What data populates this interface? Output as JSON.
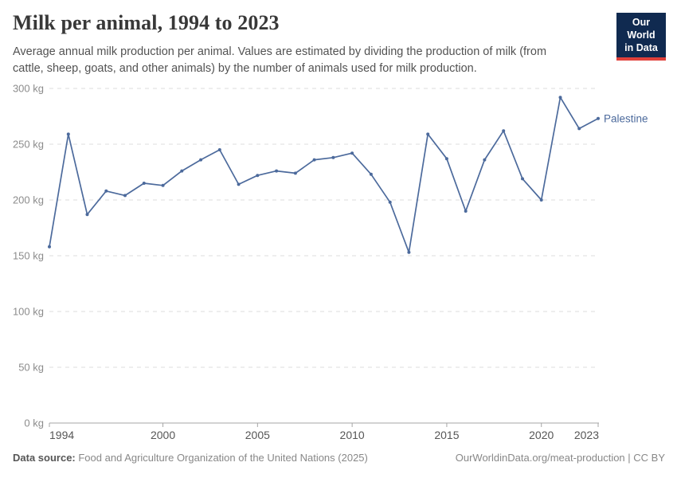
{
  "header": {
    "logo": {
      "line1": "Our World",
      "line2": "in Data",
      "bg_color": "#102a50",
      "accent_color": "#e0403a"
    }
  },
  "chart_data": {
    "type": "line",
    "title": "Milk per animal, 1994 to 2023",
    "subtitle": "Average annual milk production per animal. Values are estimated by dividing the production of milk (from cattle, sheep, goats, and other animals) by the number of animals used for milk production.",
    "x": [
      1994,
      1995,
      1996,
      1997,
      1998,
      1999,
      2000,
      2001,
      2002,
      2003,
      2004,
      2005,
      2006,
      2007,
      2008,
      2009,
      2010,
      2011,
      2012,
      2013,
      2014,
      2015,
      2016,
      2017,
      2018,
      2019,
      2020,
      2021,
      2022,
      2023
    ],
    "series": [
      {
        "name": "Palestine",
        "color": "#4C6A9C",
        "values": [
          158,
          259,
          187,
          208,
          204,
          215,
          213,
          226,
          236,
          245,
          214,
          222,
          226,
          224,
          236,
          238,
          242,
          223,
          198,
          153,
          259,
          237,
          190,
          236,
          262,
          219,
          200,
          292,
          264,
          273
        ]
      }
    ],
    "x_ticks": [
      1994,
      2000,
      2005,
      2010,
      2015,
      2020,
      2023
    ],
    "y_ticks": [
      0,
      50,
      100,
      150,
      200,
      250,
      300
    ],
    "y_unit": " kg",
    "xlim": [
      1994,
      2023
    ],
    "ylim": [
      0,
      300
    ],
    "grid": "horizontal-dashed",
    "legend": "label-at-line-end"
  },
  "footer": {
    "source_label": "Data source:",
    "source_text": " Food and Agriculture Organization of the United Nations (2025)",
    "credit": "OurWorldinData.org/meat-production | CC BY"
  }
}
